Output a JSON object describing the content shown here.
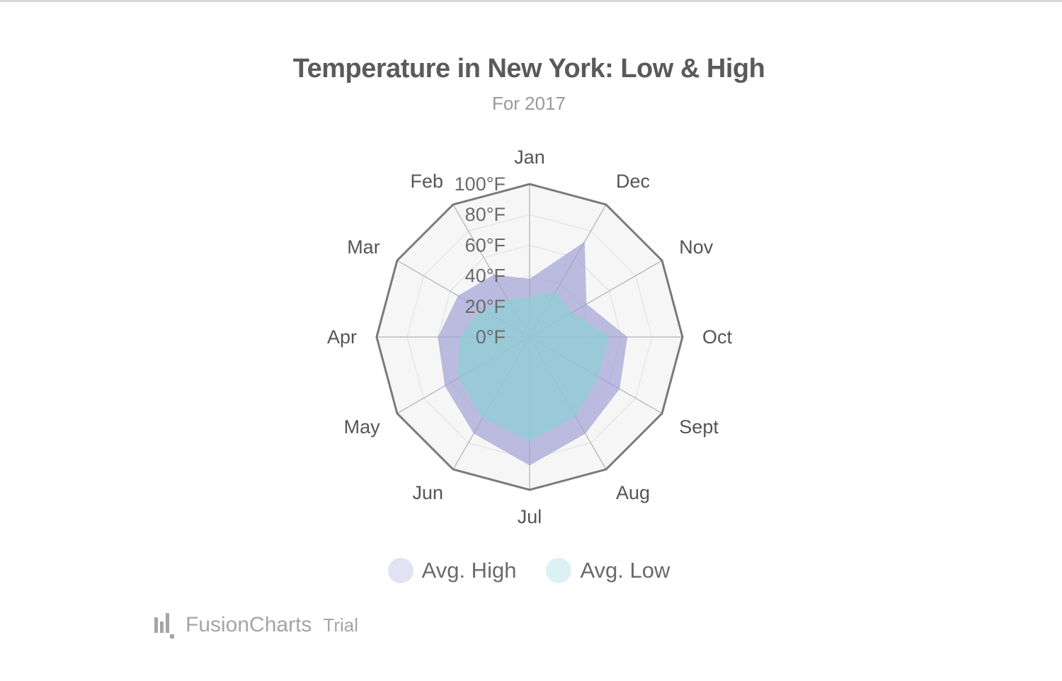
{
  "chart_data": {
    "type": "radar",
    "title": "Temperature in New York: Low & High",
    "subtitle": "For 2017",
    "categories": [
      "Jan",
      "Dec",
      "Nov",
      "Oct",
      "Sept",
      "Aug",
      "Jul",
      "Jun",
      "May",
      "Apr",
      "Mar",
      "Feb"
    ],
    "series": [
      {
        "name": "Avg. High",
        "color": "#9f9fd6",
        "values": [
          38,
          72,
          43,
          64,
          68,
          73,
          84,
          73,
          64,
          60,
          54,
          47
        ]
      },
      {
        "name": "Avg. Low",
        "color": "#8bd1d3",
        "values": [
          26,
          34,
          32,
          52,
          52,
          60,
          68,
          61,
          54,
          46,
          36,
          28
        ]
      }
    ],
    "radial_axis": {
      "min": 0,
      "max": 100,
      "step": 20,
      "unit": "°F",
      "tick_labels": [
        "0°F",
        "20°F",
        "40°F",
        "60°F",
        "80°F",
        "100°F"
      ]
    },
    "grid": true,
    "legend_position": "bottom"
  },
  "credit": {
    "brand": "FusionCharts",
    "suffix": "Trial"
  }
}
